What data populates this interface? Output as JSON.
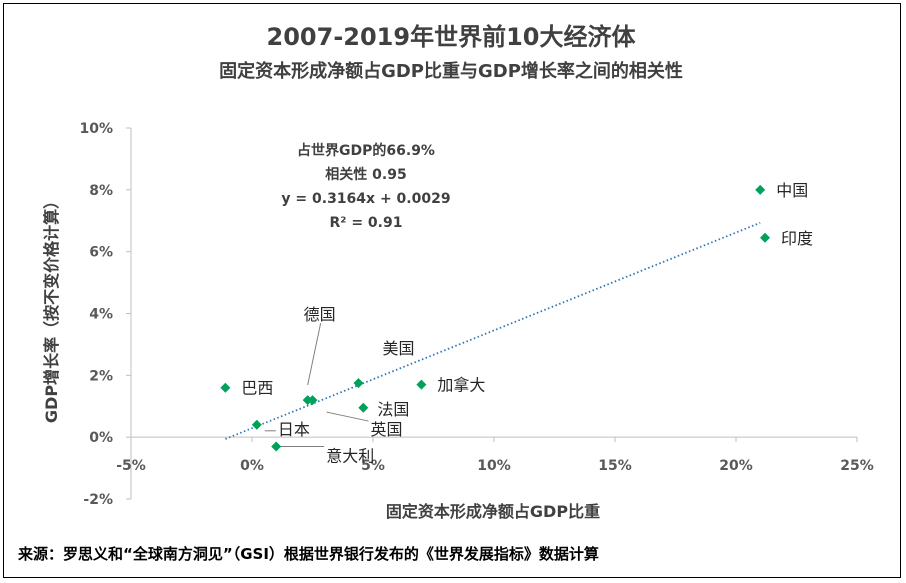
{
  "colors": {
    "marker": "#00a25a",
    "trendline": "#2e75b6",
    "axis": "#bfbfbf",
    "leader": "#7f7f7f"
  },
  "chart_data": {
    "type": "scatter",
    "title": "2007-2019年世界前10大经济体",
    "subtitle": "固定资本形成净额占GDP比重与GDP增长率之间的相关性",
    "xlabel": "固定资本形成净额占GDP比重",
    "ylabel": "GDP增长率（按不变价格计算）",
    "xlim": [
      -5,
      25
    ],
    "ylim": [
      -2,
      10
    ],
    "x_ticks": [
      -5,
      0,
      5,
      10,
      15,
      20,
      25
    ],
    "y_ticks": [
      -2,
      0,
      2,
      4,
      6,
      8,
      10
    ],
    "x_tick_labels": [
      "-5%",
      "0%",
      "5%",
      "10%",
      "15%",
      "20%",
      "25%"
    ],
    "y_tick_labels": [
      "-2%",
      "0%",
      "2%",
      "4%",
      "6%",
      "8%",
      "10%"
    ],
    "points": [
      {
        "name": "中国",
        "x": 21.0,
        "y": 8.0
      },
      {
        "name": "印度",
        "x": 21.2,
        "y": 6.45
      },
      {
        "name": "加拿大",
        "x": 7.0,
        "y": 1.7
      },
      {
        "name": "美国",
        "x": 4.4,
        "y": 1.75
      },
      {
        "name": "法国",
        "x": 4.6,
        "y": 0.95
      },
      {
        "name": "德国",
        "x": 2.3,
        "y": 1.2
      },
      {
        "name": "英国",
        "x": 2.5,
        "y": 1.2
      },
      {
        "name": "巴西",
        "x": -1.1,
        "y": 1.6
      },
      {
        "name": "日本",
        "x": 0.2,
        "y": 0.4
      },
      {
        "name": "意大利",
        "x": 1.0,
        "y": -0.3
      }
    ],
    "trendline": {
      "slope": 0.3164,
      "intercept": 0.0029,
      "x_range": [
        -1.1,
        21.0
      ],
      "style": "dotted"
    },
    "annotations": [
      "占世界GDP的66.9%",
      "相关性  0.95",
      "y = 0.3164x + 0.0029",
      "R² = 0.91"
    ]
  },
  "source": "来源：罗思义和“全球南方洞见”（GSI）根据世界银行发布的《世界发展指标》数据计算"
}
